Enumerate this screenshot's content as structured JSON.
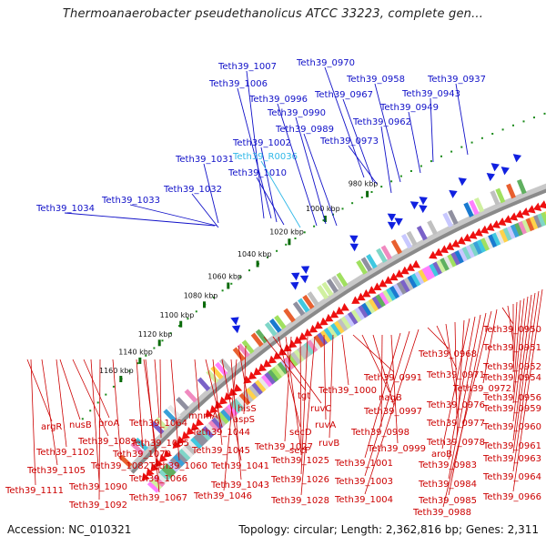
{
  "title": "Thermoanaerobacter pseudethanolicus ATCC 33223, complete gen...",
  "footer": {
    "accession": "Accession: NC_010321",
    "topology": "Topology: circular; Length: 2,362,816 bp; Genes: 2,311"
  },
  "colors": {
    "upper_label": "#1010c8",
    "rna_label": "#30b8e8",
    "lower_label": "#cc0000",
    "forward_arrow": "#1020e0",
    "reverse_arrow": "#ee1010",
    "backbone": "#8a8a8a",
    "scale_dots": "#1a8a1a"
  },
  "kbp_labels": [
    "1160 kbp",
    "1140 kbp",
    "1120 kbp",
    "1100 kbp",
    "1080 kbp",
    "1060 kbp",
    "1040 kbp",
    "1020 kbp",
    "1000 kbp",
    "980 kbp"
  ],
  "upper_labels": [
    {
      "text": "Teth39_1034",
      "kind": "gene"
    },
    {
      "text": "Teth39_1033",
      "kind": "gene"
    },
    {
      "text": "Teth39_1032",
      "kind": "gene"
    },
    {
      "text": "Teth39_1031",
      "kind": "gene"
    },
    {
      "text": "Teth39_1007",
      "kind": "gene"
    },
    {
      "text": "Teth39_1006",
      "kind": "gene"
    },
    {
      "text": "Teth39_1002",
      "kind": "gene"
    },
    {
      "text": "Teth39_R0036",
      "kind": "rna"
    },
    {
      "text": "Teth39_1010",
      "kind": "gene"
    },
    {
      "text": "Teth39_0996",
      "kind": "gene"
    },
    {
      "text": "Teth39_0990",
      "kind": "gene"
    },
    {
      "text": "Teth39_0989",
      "kind": "gene"
    },
    {
      "text": "Teth39_0970",
      "kind": "gene"
    },
    {
      "text": "Teth39_0967",
      "kind": "gene"
    },
    {
      "text": "Teth39_0958",
      "kind": "gene"
    },
    {
      "text": "Teth39_0962",
      "kind": "gene"
    },
    {
      "text": "Teth39_0973",
      "kind": "gene"
    },
    {
      "text": "Teth39_0949",
      "kind": "gene"
    },
    {
      "text": "Teth39_0943",
      "kind": "gene"
    },
    {
      "text": "Teth39_0937",
      "kind": "gene"
    }
  ],
  "lower_labels": [
    "argR",
    "nusB",
    "proA",
    "Teth39_1089",
    "Teth39_1102",
    "Teth39_1105",
    "Teth39_1111",
    "Teth39_1090",
    "Teth39_1092",
    "Teth39_1082",
    "Teth39_1070",
    "Teth39_1066",
    "Teth39_1067",
    "Teth39_1064",
    "Teth39_1065",
    "Teth39_1060",
    "mnmA",
    "Teth39_1044",
    "Teth39_1045",
    "Teth39_1041",
    "Teth39_1043",
    "Teth39_1046",
    "hisS",
    "aspS",
    "tgt",
    "ruvC",
    "secD",
    "secF",
    "Teth39_1027",
    "Teth39_1025",
    "Teth39_1026",
    "Teth39_1028",
    "ruvA",
    "ruvB",
    "Teth39_1000",
    "Teth39_0991",
    "nagB",
    "Teth39_0997",
    "Teth39_0998",
    "Teth39_0999",
    "Teth39_1001",
    "Teth39_1003",
    "Teth39_1004",
    "Teth39_0968",
    "Teth39_0971",
    "Teth39_0976",
    "Teth39_0977",
    "Teth39_0978",
    "aroB",
    "Teth39_0983",
    "Teth39_0984",
    "Teth39_0985",
    "Teth39_0988",
    "Teth39_0972",
    "Teth39_0950",
    "Teth39_0951",
    "Teth39_0952",
    "Teth39_0954",
    "Teth39_0956",
    "Teth39_0959",
    "Teth39_0960",
    "Teth39_0961",
    "Teth39_0963",
    "Teth39_0964",
    "Teth39_0966"
  ]
}
